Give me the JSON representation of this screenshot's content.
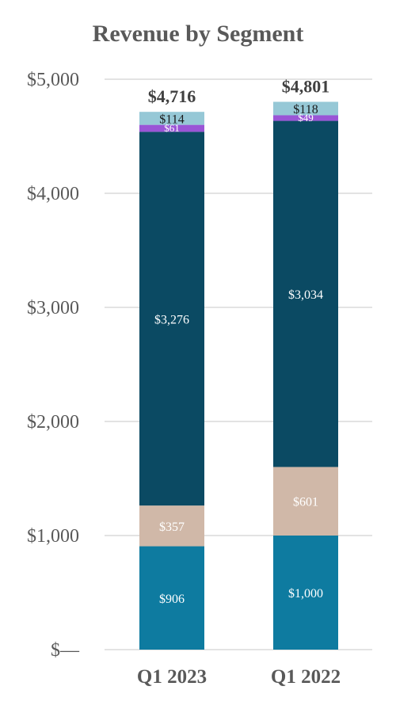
{
  "chart_data": {
    "type": "bar",
    "stacked": true,
    "title": "Revenue by Segment",
    "categories": [
      "Q1 2023",
      "Q1 2022"
    ],
    "ylim": [
      0,
      5000
    ],
    "yticks": [
      0,
      1000,
      2000,
      3000,
      4000,
      5000
    ],
    "ytick_labels": [
      "$—",
      "$1,000",
      "$2,000",
      "$3,000",
      "$4,000",
      "$5,000"
    ],
    "grid": true,
    "series": [
      {
        "color": "#0e7ba0",
        "label_color": "#ffffff",
        "values": [
          906,
          1000
        ],
        "labels": [
          "$906",
          "$1,000"
        ]
      },
      {
        "color": "#d0b8a8",
        "label_color": "#ffffff",
        "values": [
          357,
          601
        ],
        "labels": [
          "$357",
          "$601"
        ]
      },
      {
        "color": "#0b4a63",
        "label_color": "#ffffff",
        "values": [
          3276,
          3034
        ],
        "labels": [
          "$3,276",
          "$3,034"
        ]
      },
      {
        "color": "#9a55d6",
        "label_color": "#ffffff",
        "values": [
          61,
          49
        ],
        "labels": [
          "$61",
          "$49"
        ]
      },
      {
        "color": "#96c8d6",
        "label_color": "#1a1a1a",
        "values": [
          114,
          118
        ],
        "labels": [
          "$114",
          "$118"
        ]
      }
    ],
    "totals": [
      4716,
      4801
    ],
    "total_labels": [
      "$4,716",
      "$4,801"
    ]
  }
}
